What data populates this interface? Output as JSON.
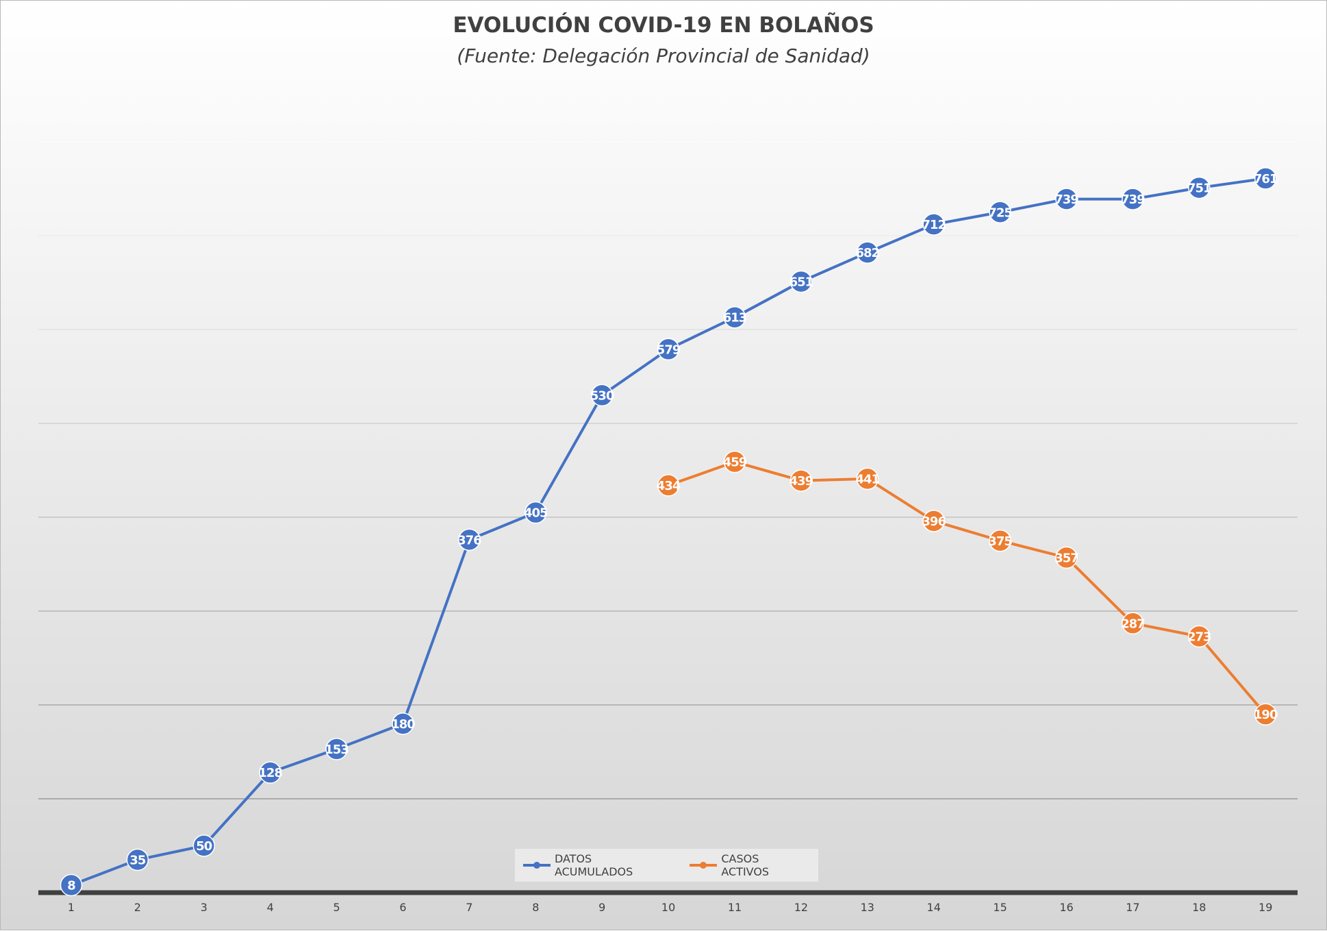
{
  "chart_data": {
    "type": "line",
    "title": "EVOLUCIÓN COVID-19 EN BOLAÑOS",
    "subtitle": "(Fuente: Delegación Provincial de Sanidad)",
    "xlabel": "",
    "ylabel": "",
    "categories": [
      "1",
      "2",
      "3",
      "4",
      "5",
      "6",
      "7",
      "8",
      "9",
      "10",
      "11",
      "12",
      "13",
      "14",
      "15",
      "16",
      "17",
      "18",
      "19"
    ],
    "ylim": [
      0,
      800
    ],
    "grid": true,
    "y_tick_labels_visible": false,
    "legend_position": "bottom",
    "series": [
      {
        "name": "DATOS ACUMULADOS",
        "color": "#4472c4",
        "values": [
          8,
          35,
          50,
          128,
          153,
          180,
          376,
          405,
          530,
          579,
          613,
          651,
          682,
          712,
          725,
          739,
          739,
          751,
          761
        ]
      },
      {
        "name": "CASOS ACTIVOS",
        "color": "#ed7d31",
        "values": [
          null,
          null,
          null,
          null,
          null,
          null,
          null,
          null,
          null,
          434,
          459,
          439,
          441,
          396,
          375,
          357,
          287,
          273,
          190
        ]
      }
    ]
  }
}
